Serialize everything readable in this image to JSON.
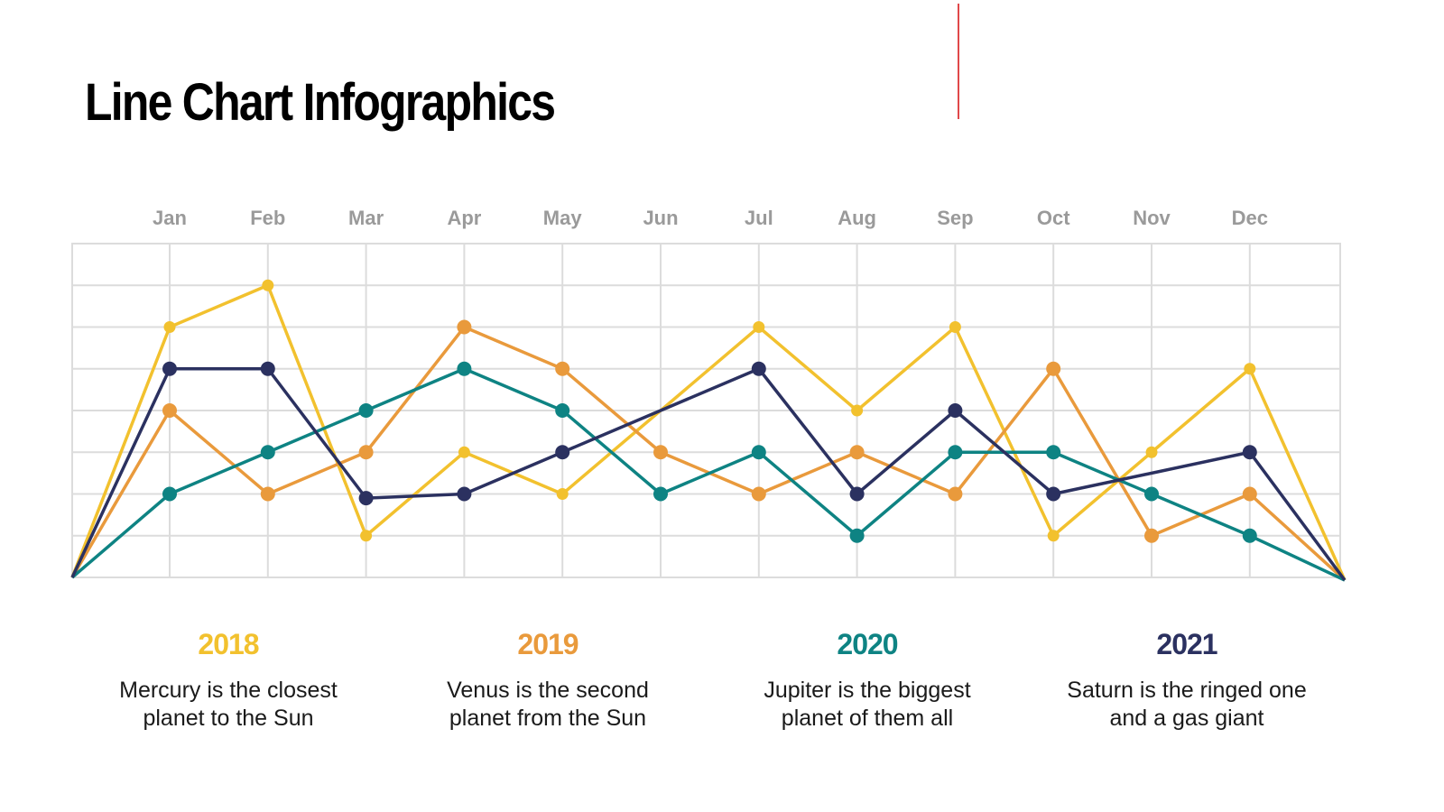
{
  "title": "Line Chart Infographics",
  "chart_data": {
    "type": "line",
    "title": "",
    "xlabel": "",
    "ylabel": "",
    "categories": [
      "Jan",
      "Feb",
      "Mar",
      "Apr",
      "May",
      "Jun",
      "Jul",
      "Aug",
      "Sep",
      "Oct",
      "Nov",
      "Dec"
    ],
    "ylim": [
      0,
      8
    ],
    "grid": true,
    "y_tick_labels_shown": false,
    "lines_start_and_end_at": 0,
    "legend": "bottom",
    "series": [
      {
        "name": "2018",
        "color": "#F2C12E",
        "values": [
          6,
          7,
          1,
          3,
          2,
          null,
          6,
          4,
          6,
          1,
          3,
          5
        ]
      },
      {
        "name": "2019",
        "color": "#E99A3C",
        "values": [
          4,
          2,
          3,
          6,
          5,
          3,
          2,
          3,
          2,
          5,
          1,
          2
        ]
      },
      {
        "name": "2020",
        "color": "#0E8383",
        "values": [
          2,
          3,
          4,
          5,
          4,
          2,
          3,
          1,
          3,
          3,
          2,
          1
        ]
      },
      {
        "name": "2021",
        "color": "#2B3160",
        "values": [
          5,
          5,
          1.9,
          2,
          3,
          null,
          5,
          2,
          4,
          2,
          null,
          3
        ]
      }
    ]
  },
  "legend": [
    {
      "year": "2018",
      "color": "#F2C12E",
      "line1": "Mercury is the closest",
      "line2": "planet to the Sun"
    },
    {
      "year": "2019",
      "color": "#E99A3C",
      "line1": "Venus is the second",
      "line2": "planet from the Sun"
    },
    {
      "year": "2020",
      "color": "#0E8383",
      "line1": "Jupiter is the biggest",
      "line2": "planet of them all"
    },
    {
      "year": "2021",
      "color": "#2B3160",
      "line1": "Saturn is the ringed one",
      "line2": "and a gas giant"
    }
  ]
}
